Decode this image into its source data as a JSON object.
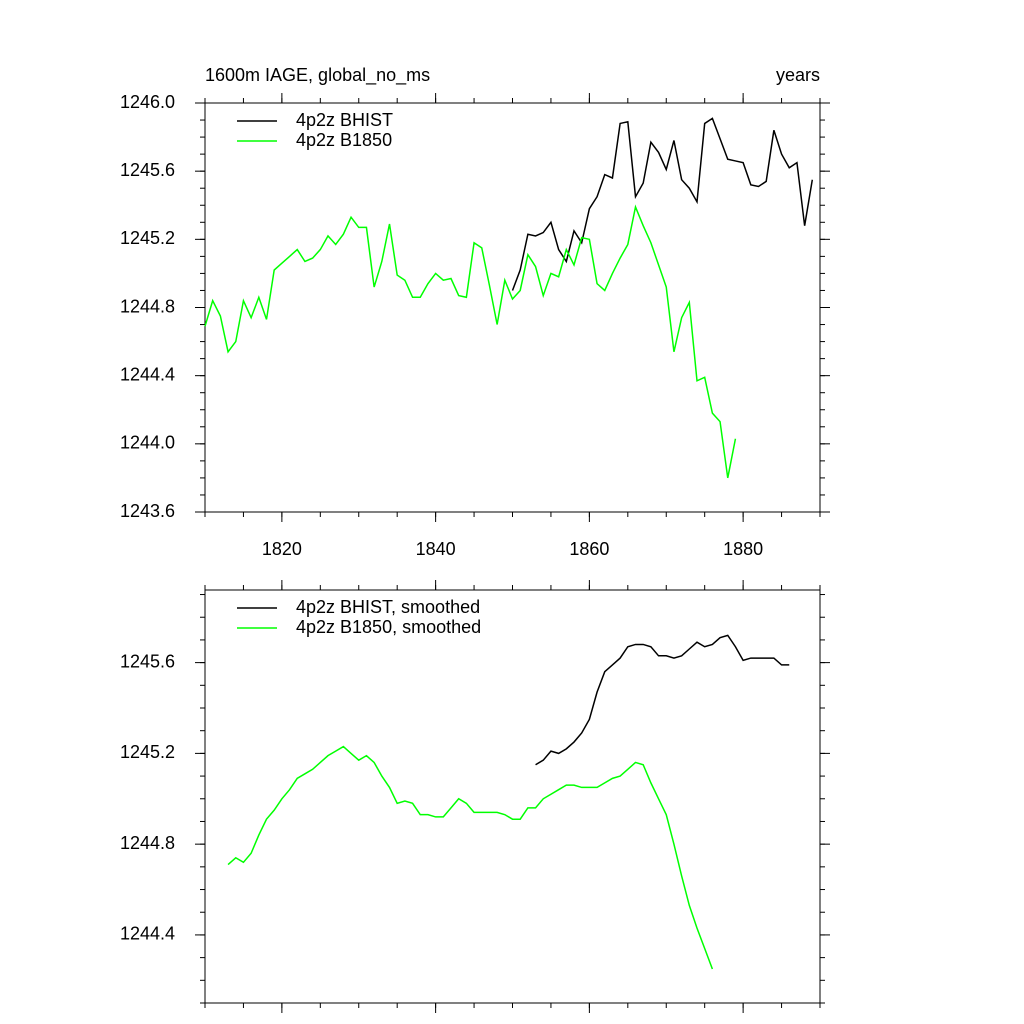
{
  "chart_data": [
    {
      "type": "line",
      "title": "1600m IAGE, global_no_ms",
      "subtitle": "years",
      "x": [
        1810,
        1811,
        1812,
        1813,
        1814,
        1815,
        1816,
        1817,
        1818,
        1819,
        1820,
        1821,
        1822,
        1823,
        1824,
        1825,
        1826,
        1827,
        1828,
        1829,
        1830,
        1831,
        1832,
        1833,
        1834,
        1835,
        1836,
        1837,
        1838,
        1839,
        1840,
        1841,
        1842,
        1843,
        1844,
        1845,
        1846,
        1847,
        1848,
        1849,
        1850,
        1851,
        1852,
        1853,
        1854,
        1855,
        1856,
        1857,
        1858,
        1859,
        1860,
        1861,
        1862,
        1863,
        1864,
        1865,
        1866,
        1867,
        1868,
        1869,
        1870,
        1871,
        1872,
        1873,
        1874,
        1875,
        1876,
        1877,
        1878,
        1879,
        1880,
        1881,
        1882,
        1883,
        1884,
        1885,
        1886,
        1887,
        1888,
        1889
      ],
      "series": [
        {
          "name": "4p2z BHIST",
          "color": "#000000",
          "values": [
            null,
            null,
            null,
            null,
            null,
            null,
            null,
            null,
            null,
            null,
            null,
            null,
            null,
            null,
            null,
            null,
            null,
            null,
            null,
            null,
            null,
            null,
            null,
            null,
            null,
            null,
            null,
            null,
            null,
            null,
            null,
            null,
            null,
            null,
            null,
            null,
            null,
            null,
            null,
            null,
            1244.9,
            1245.02,
            1245.23,
            1245.22,
            1245.24,
            1245.3,
            1245.14,
            1245.07,
            1245.25,
            1245.18,
            1245.38,
            1245.45,
            1245.58,
            1245.56,
            1245.88,
            1245.89,
            1245.45,
            1245.53,
            1245.77,
            1245.71,
            1245.61,
            1245.78,
            1245.55,
            1245.5,
            1245.42,
            1245.88,
            1245.91,
            1245.79,
            1245.67,
            1245.66,
            1245.65,
            1245.52,
            1245.51,
            1245.54,
            1245.84,
            1245.7,
            1245.62,
            1245.65,
            1245.28,
            1245.55
          ]
        },
        {
          "name": "4p2z B1850",
          "color": "#00ff00",
          "values": [
            1244.69,
            1244.84,
            1244.75,
            1244.54,
            1244.6,
            1244.84,
            1244.74,
            1244.86,
            1244.73,
            1245.02,
            1245.06,
            1245.1,
            1245.14,
            1245.07,
            1245.09,
            1245.14,
            1245.22,
            1245.17,
            1245.23,
            1245.33,
            1245.27,
            1245.27,
            1244.92,
            1245.07,
            1245.29,
            1244.99,
            1244.96,
            1244.86,
            1244.86,
            1244.94,
            1245.0,
            1244.96,
            1244.97,
            1244.87,
            1244.86,
            1245.18,
            1245.15,
            1244.93,
            1244.7,
            1244.96,
            1244.85,
            1244.9,
            1245.11,
            1245.04,
            1244.87,
            1245.0,
            1244.98,
            1245.14,
            1245.05,
            1245.21,
            1245.2,
            1244.94,
            1244.9,
            1245.0,
            1245.09,
            1245.17,
            1245.39,
            1245.28,
            1245.18,
            1245.05,
            1244.92,
            1244.54,
            1244.74,
            1244.83,
            1244.37,
            1244.39,
            1244.18,
            1244.13,
            1243.8,
            1244.03,
            null,
            null,
            null,
            null,
            null,
            null,
            null,
            null,
            null,
            null
          ]
        }
      ],
      "xlim": [
        1810,
        1890
      ],
      "xticks": [
        1820,
        1840,
        1860,
        1880
      ],
      "ylim": [
        1243.6,
        1246.0
      ],
      "yticks": [
        {
          "value": 1243.6,
          "label": "1243.6"
        },
        {
          "value": 1244.0,
          "label": "1244.0"
        },
        1244.4,
        1244.8,
        1245.2,
        1245.6,
        {
          "value": 1246.0,
          "label": "1246.0"
        }
      ],
      "legend": "upper left"
    },
    {
      "type": "line",
      "x": [
        1810,
        1811,
        1812,
        1813,
        1814,
        1815,
        1816,
        1817,
        1818,
        1819,
        1820,
        1821,
        1822,
        1823,
        1824,
        1825,
        1826,
        1827,
        1828,
        1829,
        1830,
        1831,
        1832,
        1833,
        1834,
        1835,
        1836,
        1837,
        1838,
        1839,
        1840,
        1841,
        1842,
        1843,
        1844,
        1845,
        1846,
        1847,
        1848,
        1849,
        1850,
        1851,
        1852,
        1853,
        1854,
        1855,
        1856,
        1857,
        1858,
        1859,
        1860,
        1861,
        1862,
        1863,
        1864,
        1865,
        1866,
        1867,
        1868,
        1869,
        1870,
        1871,
        1872,
        1873,
        1874,
        1875,
        1876,
        1877,
        1878,
        1879,
        1880,
        1881,
        1882,
        1883,
        1884,
        1885,
        1886,
        1887,
        1888,
        1889
      ],
      "series": [
        {
          "name": "4p2z BHIST, smoothed",
          "color": "#000000",
          "values": [
            null,
            null,
            null,
            null,
            null,
            null,
            null,
            null,
            null,
            null,
            null,
            null,
            null,
            null,
            null,
            null,
            null,
            null,
            null,
            null,
            null,
            null,
            null,
            null,
            null,
            null,
            null,
            null,
            null,
            null,
            null,
            null,
            null,
            null,
            null,
            null,
            null,
            null,
            null,
            null,
            null,
            null,
            null,
            1245.15,
            1245.17,
            1245.21,
            1245.2,
            1245.22,
            1245.25,
            1245.29,
            1245.35,
            1245.47,
            1245.56,
            1245.59,
            1245.62,
            1245.67,
            1245.68,
            1245.68,
            1245.67,
            1245.63,
            1245.63,
            1245.62,
            1245.63,
            1245.66,
            1245.69,
            1245.67,
            1245.68,
            1245.71,
            1245.72,
            1245.67,
            1245.61,
            1245.62,
            1245.62,
            1245.62,
            1245.62,
            1245.59,
            1245.59,
            null,
            null,
            null
          ]
        },
        {
          "name": "4p2z B1850, smoothed",
          "color": "#00ff00",
          "values": [
            null,
            null,
            null,
            1244.71,
            1244.74,
            1244.72,
            1244.76,
            1244.84,
            1244.91,
            1244.95,
            1245.0,
            1245.04,
            1245.09,
            1245.11,
            1245.13,
            1245.16,
            1245.19,
            1245.21,
            1245.23,
            1245.2,
            1245.17,
            1245.19,
            1245.16,
            1245.1,
            1245.05,
            1244.98,
            1244.99,
            1244.98,
            1244.93,
            1244.93,
            1244.92,
            1244.92,
            1244.96,
            1245.0,
            1244.98,
            1244.94,
            1244.94,
            1244.94,
            1244.94,
            1244.93,
            1244.91,
            1244.91,
            1244.96,
            1244.96,
            1245.0,
            1245.02,
            1245.04,
            1245.06,
            1245.06,
            1245.05,
            1245.05,
            1245.05,
            1245.07,
            1245.09,
            1245.1,
            1245.13,
            1245.16,
            1245.15,
            1245.07,
            1245.0,
            1244.93,
            1244.8,
            1244.66,
            1244.53,
            1244.43,
            1244.34,
            1244.25,
            null,
            null,
            null,
            null,
            null,
            null,
            null,
            null,
            null,
            null,
            null,
            null,
            null
          ]
        }
      ],
      "xlim": [
        1810,
        1890
      ],
      "ylim": [
        1244.1,
        1245.92
      ],
      "yticks": [
        1244.4,
        1244.8,
        1245.2,
        1245.6
      ],
      "legend": "upper left"
    }
  ]
}
